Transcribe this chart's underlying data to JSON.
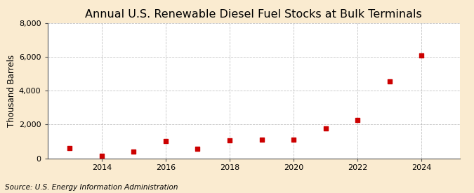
{
  "title": "Annual U.S. Renewable Diesel Fuel Stocks at Bulk Terminals",
  "ylabel": "Thousand Barrels",
  "source": "Source: U.S. Energy Information Administration",
  "years": [
    2013,
    2014,
    2015,
    2016,
    2017,
    2018,
    2019,
    2020,
    2021,
    2022,
    2023,
    2024
  ],
  "values": [
    600,
    150,
    400,
    1000,
    550,
    1050,
    1100,
    1100,
    1750,
    2250,
    4550,
    6100
  ],
  "marker_color": "#cc0000",
  "marker": "s",
  "marker_size": 5,
  "figure_bg_color": "#faebd0",
  "plot_bg_color": "#ffffff",
  "grid_color": "#aaaaaa",
  "ylim": [
    0,
    8000
  ],
  "yticks": [
    0,
    2000,
    4000,
    6000,
    8000
  ],
  "xticks": [
    2014,
    2016,
    2018,
    2020,
    2022,
    2024
  ],
  "xlim": [
    2012.3,
    2025.2
  ],
  "title_fontsize": 11.5,
  "ylabel_fontsize": 8.5,
  "tick_fontsize": 8,
  "source_fontsize": 7.5
}
